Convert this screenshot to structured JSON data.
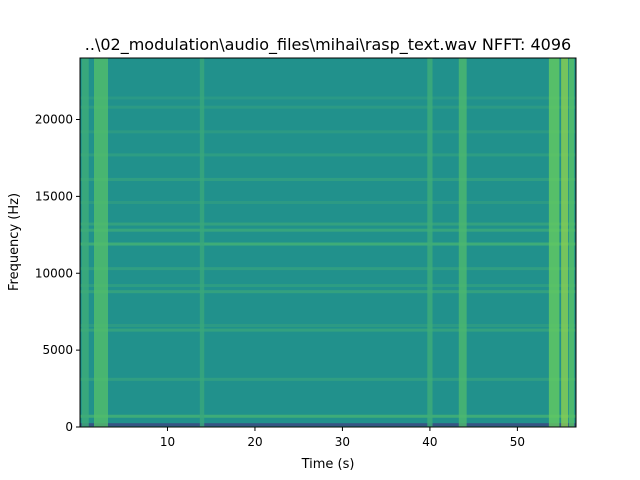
{
  "chart_data": {
    "type": "heatmap",
    "title": "..\\02_modulation\\audio_files\\mihai\\rasp_text.wav  NFFT: 4096",
    "xlabel": "Time (s)",
    "ylabel": "Frequency (Hz)",
    "xlim": [
      0,
      56.7
    ],
    "ylim": [
      0,
      24000
    ],
    "xticks": [
      10,
      20,
      30,
      40,
      50
    ],
    "yticks": [
      0,
      5000,
      10000,
      15000,
      20000
    ],
    "colormap": "viridis",
    "base_level": 0.5,
    "horizontal_bands_hz": [
      {
        "freq": 150,
        "level": 0.2
      },
      {
        "freq": 700,
        "level": 0.66
      },
      {
        "freq": 3100,
        "level": 0.58
      },
      {
        "freq": 6300,
        "level": 0.6
      },
      {
        "freq": 6600,
        "level": 0.56
      },
      {
        "freq": 8800,
        "level": 0.6
      },
      {
        "freq": 9200,
        "level": 0.57
      },
      {
        "freq": 10300,
        "level": 0.58
      },
      {
        "freq": 11900,
        "level": 0.66
      },
      {
        "freq": 12800,
        "level": 0.62
      },
      {
        "freq": 13200,
        "level": 0.6
      },
      {
        "freq": 14600,
        "level": 0.56
      },
      {
        "freq": 16100,
        "level": 0.58
      },
      {
        "freq": 17700,
        "level": 0.57
      },
      {
        "freq": 19200,
        "level": 0.56
      },
      {
        "freq": 20800,
        "level": 0.56
      },
      {
        "freq": 21400,
        "level": 0.55
      }
    ],
    "vertical_events_s": [
      {
        "start": 0.2,
        "end": 1.0,
        "level": 0.62
      },
      {
        "start": 1.6,
        "end": 3.2,
        "level": 0.7
      },
      {
        "start": 13.7,
        "end": 14.2,
        "level": 0.6
      },
      {
        "start": 39.7,
        "end": 40.3,
        "level": 0.62
      },
      {
        "start": 43.3,
        "end": 44.2,
        "level": 0.68
      },
      {
        "start": 53.6,
        "end": 54.8,
        "level": 0.76
      },
      {
        "start": 55.0,
        "end": 55.8,
        "level": 0.82
      },
      {
        "start": 55.9,
        "end": 56.5,
        "level": 0.72
      }
    ]
  },
  "colors": {
    "cmap_stops": [
      "#440154",
      "#3b528b",
      "#21918c",
      "#5ec962",
      "#fde725"
    ]
  }
}
